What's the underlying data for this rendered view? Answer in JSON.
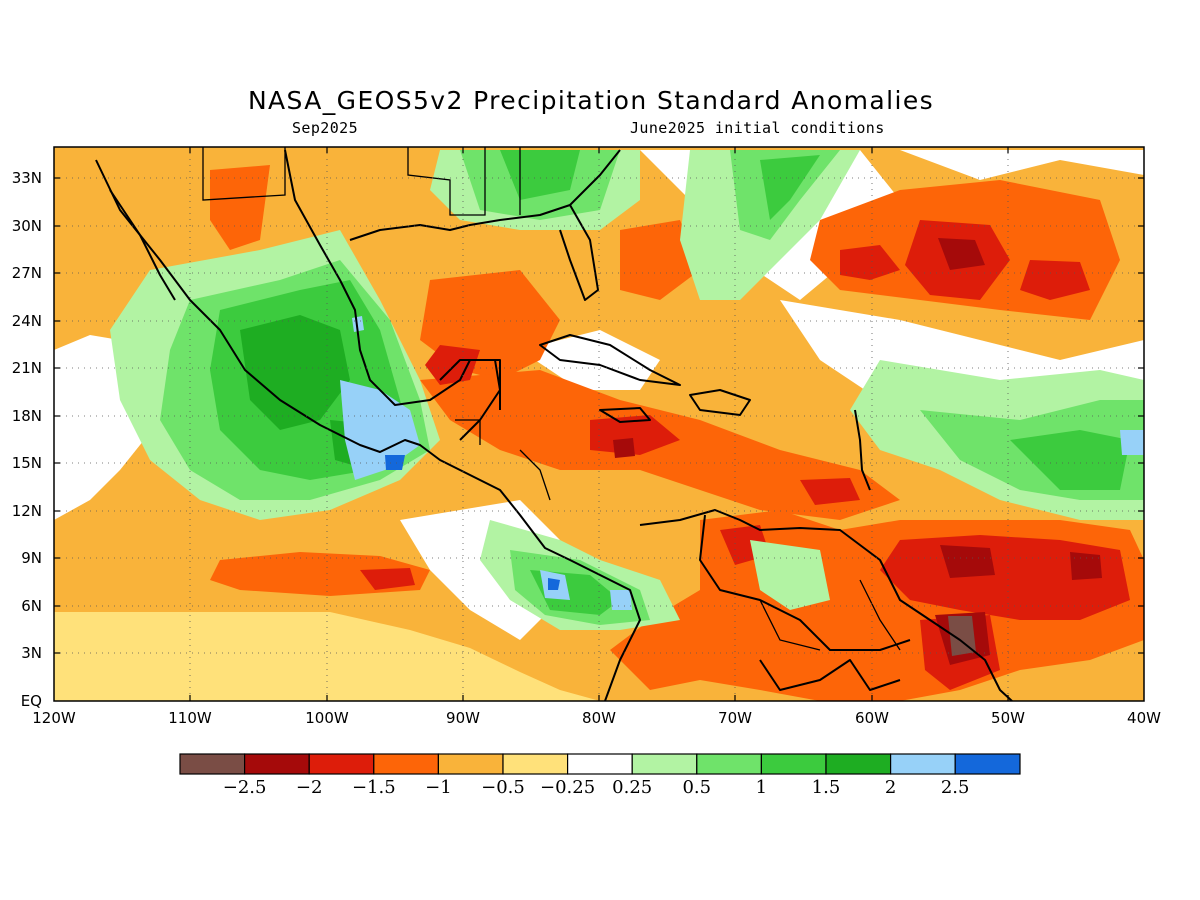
{
  "title": "NASA_GEOS5v2 Precipitation Standard Anomalies",
  "subtitle_left": "Sep2025",
  "subtitle_right": "June2025 initial conditions",
  "map": {
    "lat_labels": [
      "33N",
      "30N",
      "27N",
      "24N",
      "21N",
      "18N",
      "15N",
      "12N",
      "9N",
      "6N",
      "3N",
      "EQ"
    ],
    "lat_values": [
      33,
      30,
      27,
      24,
      21,
      18,
      15,
      12,
      9,
      6,
      3,
      0
    ],
    "lon_labels": [
      "120W",
      "110W",
      "100W",
      "90W",
      "80W",
      "70W",
      "60W",
      "50W",
      "40W"
    ],
    "lon_values": [
      -120,
      -110,
      -100,
      -90,
      -80,
      -70,
      -60,
      -50,
      -40
    ],
    "lon_range": [
      -120,
      -40
    ],
    "lat_range": [
      0,
      35
    ],
    "grid": "dotted",
    "colors": {
      "ocean_dry": "#ffe17a",
      "moderate_dry": "#f9b33a",
      "dry": "#fd6508",
      "very_dry": "#dd1d0a",
      "extreme_dry": "#a50a0a",
      "driest": "#7a4d45",
      "neutral": "#ffffff",
      "light_wet": "#b2f3a3",
      "moderate_wet": "#6fe36a",
      "wet": "#3ccb3e",
      "very_wet": "#1ead22",
      "wetter": "#97d1f8",
      "wettest": "#1468db",
      "coastline": "#000000"
    }
  },
  "colorbar": {
    "colors": [
      "#7a4d45",
      "#a50a0a",
      "#dd1d0a",
      "#fd6508",
      "#f9b33a",
      "#ffe17a",
      "#ffffff",
      "#b2f3a3",
      "#6fe36a",
      "#3ccb3e",
      "#1ead22",
      "#97d1f8",
      "#1468db"
    ],
    "labels": [
      "−2.5",
      "−2",
      "−1.5",
      "−1",
      "−0.5",
      "−0.25",
      "0.25",
      "0.5",
      "1",
      "1.5",
      "2",
      "2.5"
    ]
  }
}
